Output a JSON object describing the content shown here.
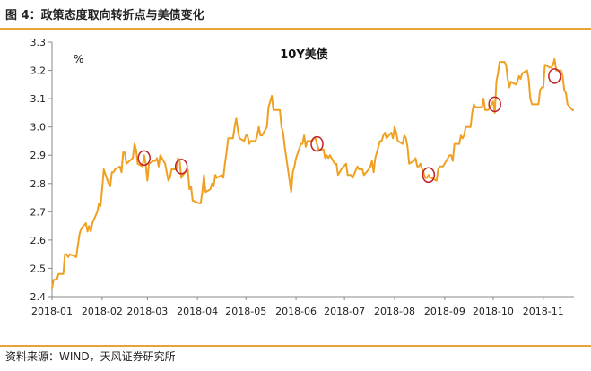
{
  "figure": {
    "title": "图 4：政策态度取向转折点与美债变化",
    "source": "资料来源：WIND，天风证券研究所",
    "rule_color": "#e8a23a"
  },
  "chart_data": {
    "type": "line",
    "title": "10Y美债",
    "unit": "%",
    "xlabel": "",
    "ylabel": "",
    "ylim": [
      2.4,
      3.3
    ],
    "xlim": [
      "2018-01-01",
      "2018-11-20"
    ],
    "y_ticks": [
      "2.4",
      "2.5",
      "2.6",
      "2.7",
      "2.8",
      "2.9",
      "3.0",
      "3.1",
      "3.2",
      "3.3"
    ],
    "x_ticks": [
      "2018-01",
      "2018-02",
      "2018-03",
      "2018-04",
      "2018-05",
      "2018-06",
      "2018-07",
      "2018-08",
      "2018-09",
      "2018-10",
      "2018-11"
    ],
    "grid": false,
    "legend": "none",
    "line_color": "#f0a020",
    "marker_color": "#c0202a",
    "series": [
      {
        "x": [
          "2018-01-01",
          "2018-01-02",
          "2018-01-04",
          "2018-01-05",
          "2018-01-08",
          "2018-01-09",
          "2018-01-10",
          "2018-01-11",
          "2018-01-12",
          "2018-01-16",
          "2018-01-17",
          "2018-01-18",
          "2018-01-19",
          "2018-01-22",
          "2018-01-23",
          "2018-01-24",
          "2018-01-25",
          "2018-01-26",
          "2018-01-29",
          "2018-01-30",
          "2018-01-31",
          "2018-02-01",
          "2018-02-02",
          "2018-02-05",
          "2018-02-06",
          "2018-02-07",
          "2018-02-08",
          "2018-02-09",
          "2018-02-12",
          "2018-02-13",
          "2018-02-14",
          "2018-02-15",
          "2018-02-16",
          "2018-02-20",
          "2018-02-21",
          "2018-02-22",
          "2018-02-23",
          "2018-02-26",
          "2018-02-27",
          "2018-02-28",
          "2018-03-01",
          "2018-03-02",
          "2018-03-05",
          "2018-03-06",
          "2018-03-07",
          "2018-03-08",
          "2018-03-09",
          "2018-03-12",
          "2018-03-13",
          "2018-03-14",
          "2018-03-15",
          "2018-03-16",
          "2018-03-19",
          "2018-03-20",
          "2018-03-21",
          "2018-03-22",
          "2018-03-23",
          "2018-03-26",
          "2018-03-27",
          "2018-03-28",
          "2018-03-29",
          "2018-04-02",
          "2018-04-03",
          "2018-04-04",
          "2018-04-05",
          "2018-04-06",
          "2018-04-09",
          "2018-04-10",
          "2018-04-11",
          "2018-04-12",
          "2018-04-13",
          "2018-04-16",
          "2018-04-17",
          "2018-04-18",
          "2018-04-19",
          "2018-04-20",
          "2018-04-23",
          "2018-04-24",
          "2018-04-25",
          "2018-04-26",
          "2018-04-27",
          "2018-04-30",
          "2018-05-01",
          "2018-05-02",
          "2018-05-03",
          "2018-05-04",
          "2018-05-07",
          "2018-05-08",
          "2018-05-09",
          "2018-05-10",
          "2018-05-11",
          "2018-05-14",
          "2018-05-15",
          "2018-05-16",
          "2018-05-17",
          "2018-05-18",
          "2018-05-21",
          "2018-05-22",
          "2018-05-23",
          "2018-05-24",
          "2018-05-25",
          "2018-05-29",
          "2018-05-30",
          "2018-05-31",
          "2018-06-01",
          "2018-06-04",
          "2018-06-05",
          "2018-06-06",
          "2018-06-07",
          "2018-06-08",
          "2018-06-11",
          "2018-06-12",
          "2018-06-13",
          "2018-06-14",
          "2018-06-15",
          "2018-06-18",
          "2018-06-19",
          "2018-06-20",
          "2018-06-21",
          "2018-06-22",
          "2018-06-25",
          "2018-06-26",
          "2018-06-27",
          "2018-06-28",
          "2018-06-29",
          "2018-07-02",
          "2018-07-03",
          "2018-07-05",
          "2018-07-06",
          "2018-07-09",
          "2018-07-10",
          "2018-07-11",
          "2018-07-12",
          "2018-07-13",
          "2018-07-16",
          "2018-07-17",
          "2018-07-18",
          "2018-07-19",
          "2018-07-20",
          "2018-07-23",
          "2018-07-24",
          "2018-07-25",
          "2018-07-26",
          "2018-07-27",
          "2018-07-30",
          "2018-07-31",
          "2018-08-01",
          "2018-08-02",
          "2018-08-03",
          "2018-08-06",
          "2018-08-07",
          "2018-08-08",
          "2018-08-09",
          "2018-08-10",
          "2018-08-13",
          "2018-08-14",
          "2018-08-15",
          "2018-08-16",
          "2018-08-17",
          "2018-08-20",
          "2018-08-21",
          "2018-08-22",
          "2018-08-23",
          "2018-08-24",
          "2018-08-27",
          "2018-08-28",
          "2018-08-29",
          "2018-08-30",
          "2018-08-31",
          "2018-09-04",
          "2018-09-05",
          "2018-09-06",
          "2018-09-07",
          "2018-09-10",
          "2018-09-11",
          "2018-09-12",
          "2018-09-13",
          "2018-09-14",
          "2018-09-17",
          "2018-09-18",
          "2018-09-19",
          "2018-09-20",
          "2018-09-21",
          "2018-09-24",
          "2018-09-25",
          "2018-09-26",
          "2018-09-27",
          "2018-09-28",
          "2018-10-01",
          "2018-10-02",
          "2018-10-03",
          "2018-10-04",
          "2018-10-05",
          "2018-10-08",
          "2018-10-09",
          "2018-10-10",
          "2018-10-11",
          "2018-10-12",
          "2018-10-15",
          "2018-10-16",
          "2018-10-17",
          "2018-10-18",
          "2018-10-19",
          "2018-10-22",
          "2018-10-23",
          "2018-10-24",
          "2018-10-25",
          "2018-10-26",
          "2018-10-29",
          "2018-10-30",
          "2018-10-31",
          "2018-11-01",
          "2018-11-02",
          "2018-11-05",
          "2018-11-06",
          "2018-11-07",
          "2018-11-08",
          "2018-11-09",
          "2018-11-12",
          "2018-11-13",
          "2018-11-14",
          "2018-11-15",
          "2018-11-16",
          "2018-11-19",
          "2018-11-20"
        ],
        "y": [
          2.43,
          2.46,
          2.46,
          2.48,
          2.48,
          2.55,
          2.55,
          2.54,
          2.55,
          2.54,
          2.58,
          2.62,
          2.64,
          2.66,
          2.63,
          2.65,
          2.63,
          2.66,
          2.7,
          2.73,
          2.72,
          2.78,
          2.85,
          2.8,
          2.79,
          2.84,
          2.84,
          2.85,
          2.86,
          2.84,
          2.91,
          2.91,
          2.87,
          2.89,
          2.94,
          2.92,
          2.87,
          2.86,
          2.9,
          2.87,
          2.81,
          2.87,
          2.88,
          2.88,
          2.89,
          2.86,
          2.9,
          2.87,
          2.84,
          2.81,
          2.82,
          2.85,
          2.85,
          2.89,
          2.88,
          2.82,
          2.83,
          2.85,
          2.78,
          2.79,
          2.74,
          2.73,
          2.73,
          2.77,
          2.83,
          2.77,
          2.78,
          2.8,
          2.79,
          2.83,
          2.82,
          2.83,
          2.82,
          2.87,
          2.91,
          2.96,
          2.96,
          3.0,
          3.03,
          2.99,
          2.96,
          2.95,
          2.97,
          2.97,
          2.94,
          2.95,
          2.95,
          2.97,
          3.0,
          2.97,
          2.97,
          3.0,
          3.07,
          3.09,
          3.11,
          3.06,
          3.06,
          3.06,
          3.0,
          2.98,
          2.93,
          2.77,
          2.84,
          2.86,
          2.89,
          2.94,
          2.94,
          2.97,
          2.93,
          2.95,
          2.95,
          2.96,
          2.96,
          2.94,
          2.92,
          2.92,
          2.89,
          2.9,
          2.89,
          2.9,
          2.87,
          2.87,
          2.83,
          2.84,
          2.85,
          2.87,
          2.83,
          2.83,
          2.82,
          2.86,
          2.85,
          2.85,
          2.85,
          2.83,
          2.85,
          2.86,
          2.88,
          2.84,
          2.89,
          2.95,
          2.95,
          2.97,
          2.98,
          2.96,
          2.98,
          2.96,
          3.0,
          2.98,
          2.95,
          2.94,
          2.97,
          2.96,
          2.93,
          2.87,
          2.88,
          2.89,
          2.86,
          2.86,
          2.87,
          2.82,
          2.82,
          2.83,
          2.82,
          2.82,
          2.81,
          2.85,
          2.86,
          2.86,
          2.86,
          2.9,
          2.9,
          2.88,
          2.94,
          2.94,
          2.97,
          2.96,
          2.97,
          3.0,
          3.0,
          3.05,
          3.08,
          3.07,
          3.07,
          3.07,
          3.1,
          3.06,
          3.06,
          3.06,
          3.09,
          3.05,
          3.16,
          3.19,
          3.23,
          3.23,
          3.22,
          3.17,
          3.14,
          3.16,
          3.15,
          3.16,
          3.18,
          3.17,
          3.19,
          3.2,
          3.17,
          3.1,
          3.08,
          3.08,
          3.08,
          3.13,
          3.14,
          3.14,
          3.22,
          3.21,
          3.21,
          3.22,
          3.24,
          3.2,
          3.2,
          3.18,
          3.13,
          3.12,
          3.08,
          3.06,
          3.06
        ]
      }
    ],
    "annotations": [
      {
        "shape": "circle",
        "x": "2018-02-27",
        "y": 2.89
      },
      {
        "shape": "circle",
        "x": "2018-03-22",
        "y": 2.86
      },
      {
        "shape": "circle",
        "x": "2018-06-14",
        "y": 2.94
      },
      {
        "shape": "circle",
        "x": "2018-08-22",
        "y": 2.83
      },
      {
        "shape": "circle",
        "x": "2018-10-02",
        "y": 3.08
      },
      {
        "shape": "circle",
        "x": "2018-11-08",
        "y": 3.18
      }
    ]
  }
}
